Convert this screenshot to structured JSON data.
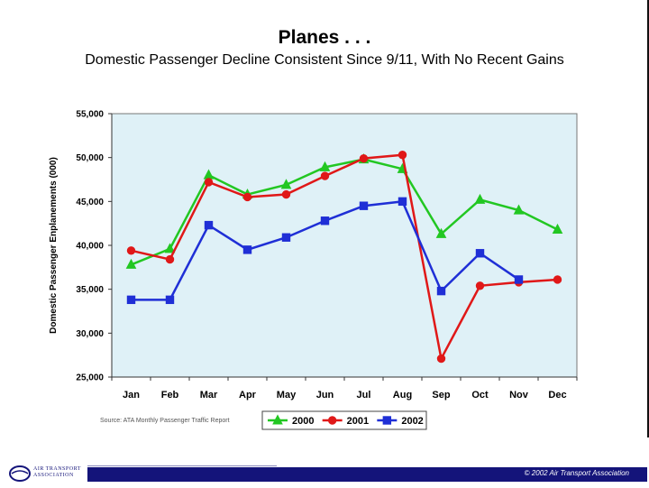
{
  "slide": {
    "title": "Planes . . .",
    "subtitle": "Domestic Passenger Decline Consistent Since 9/11, With No Recent Gains",
    "source": "Source: ATA Monthly Passenger Traffic Report",
    "copyright": "© 2002 Air Transport Association",
    "logo_line1": "AIR TRANSPORT",
    "logo_line2": "ASSOCIATION"
  },
  "colors": {
    "plot_background": "#dff1f7",
    "series_2000": "#22c722",
    "series_2001": "#e01818",
    "series_2002": "#1f2fd6",
    "footer": "#14147a"
  },
  "chart_data": {
    "type": "line",
    "ylabel": "Domestic Passenger Enplanements (000)",
    "xlabel": "",
    "ylim": [
      25000,
      55000
    ],
    "yticks": [
      25000,
      30000,
      35000,
      40000,
      45000,
      50000,
      55000
    ],
    "ytick_labels": [
      "25,000",
      "30,000",
      "35,000",
      "40,000",
      "45,000",
      "50,000",
      "55,000"
    ],
    "grid": false,
    "legend_position": "bottom",
    "categories": [
      "Jan",
      "Feb",
      "Mar",
      "Apr",
      "May",
      "Jun",
      "Jul",
      "Aug",
      "Sep",
      "Oct",
      "Nov",
      "Dec"
    ],
    "series": [
      {
        "name": "2000",
        "marker": "triangle",
        "color": "#22c722",
        "values": [
          37800,
          39600,
          48000,
          45800,
          46900,
          48900,
          49800,
          48700,
          41300,
          45200,
          44000,
          41800
        ]
      },
      {
        "name": "2001",
        "marker": "circle",
        "color": "#e01818",
        "values": [
          39400,
          38400,
          47200,
          45500,
          45800,
          47900,
          49900,
          50300,
          27100,
          35400,
          35800,
          36100
        ]
      },
      {
        "name": "2002",
        "marker": "square",
        "color": "#1f2fd6",
        "values": [
          33800,
          33800,
          42300,
          39500,
          40900,
          42800,
          44500,
          45000,
          34800,
          39100,
          36100,
          null
        ]
      }
    ]
  }
}
